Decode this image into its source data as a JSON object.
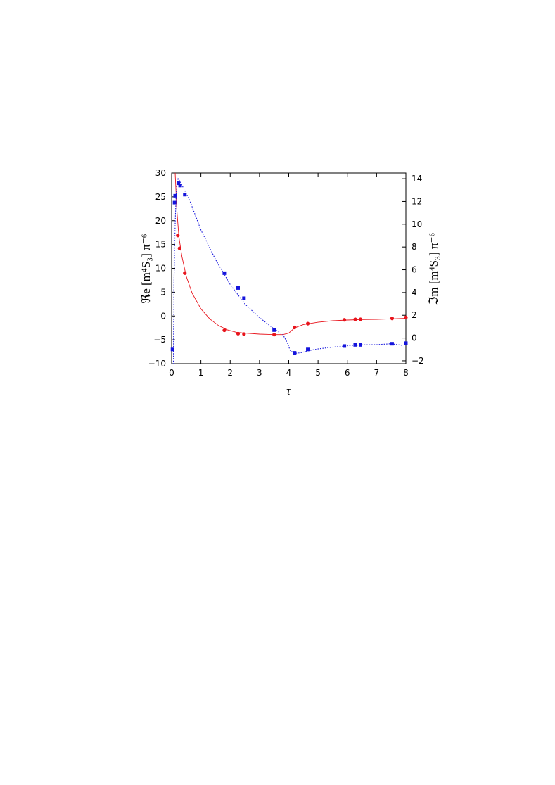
{
  "chart_data": {
    "type": "scatter",
    "xlabel": "τ",
    "ylabel_left": "ℜe [m⁴S₃] π⁻⁶",
    "ylabel_right": "ℑm [m⁴S₃] π⁻⁶",
    "xlim": [
      0,
      8
    ],
    "ylim_left": [
      -10,
      30
    ],
    "ylim_right": [
      -2.25,
      14.5
    ],
    "x_ticks": [
      "0",
      "1",
      "2",
      "3",
      "4",
      "5",
      "6",
      "7",
      "8"
    ],
    "y_left_ticks": [
      "30",
      "25",
      "20",
      "15",
      "10",
      "5",
      "0",
      "−5",
      "−10"
    ],
    "y_right_ticks": [
      "14",
      "12",
      "10",
      "8",
      "6",
      "4",
      "2",
      "0",
      "−2"
    ],
    "grid": false,
    "series": [
      {
        "axis": "left",
        "color": "#e8141c",
        "marker": "circle",
        "line_style": "solid",
        "points": [
          [
            0.21,
            16.9
          ],
          [
            0.27,
            14.2
          ],
          [
            0.45,
            9.0
          ],
          [
            1.8,
            -3.0
          ],
          [
            2.27,
            -3.7
          ],
          [
            2.47,
            -3.8
          ],
          [
            3.5,
            -3.9
          ],
          [
            4.2,
            -2.4
          ],
          [
            4.65,
            -1.6
          ],
          [
            5.9,
            -0.8
          ],
          [
            6.27,
            -0.7
          ],
          [
            6.45,
            -0.7
          ],
          [
            7.53,
            -0.5
          ],
          [
            8.0,
            -0.3
          ]
        ],
        "curve": [
          [
            0.12,
            30.0
          ],
          [
            0.18,
            22.0
          ],
          [
            0.25,
            16.5
          ],
          [
            0.35,
            12.5
          ],
          [
            0.5,
            8.3
          ],
          [
            0.7,
            4.8
          ],
          [
            1.0,
            1.5
          ],
          [
            1.3,
            -0.6
          ],
          [
            1.6,
            -2.0
          ],
          [
            1.9,
            -2.9
          ],
          [
            2.2,
            -3.4
          ],
          [
            2.5,
            -3.6
          ],
          [
            3.0,
            -3.8
          ],
          [
            3.5,
            -3.9
          ],
          [
            3.8,
            -3.9
          ],
          [
            4.0,
            -3.6
          ],
          [
            4.2,
            -2.5
          ],
          [
            4.5,
            -1.8
          ],
          [
            5.0,
            -1.3
          ],
          [
            5.5,
            -1.0
          ],
          [
            6.0,
            -0.85
          ],
          [
            6.5,
            -0.75
          ],
          [
            7.0,
            -0.7
          ],
          [
            7.5,
            -0.6
          ],
          [
            8.0,
            -0.5
          ]
        ]
      },
      {
        "axis": "right",
        "color": "#1414dc",
        "marker": "square",
        "line_style": "dotted",
        "points": [
          [
            0.03,
            -1.0
          ],
          [
            0.1,
            11.9
          ],
          [
            0.12,
            12.5
          ],
          [
            0.23,
            13.6
          ],
          [
            0.29,
            13.4
          ],
          [
            0.45,
            12.6
          ],
          [
            1.8,
            5.7
          ],
          [
            2.27,
            4.4
          ],
          [
            2.47,
            3.5
          ],
          [
            3.5,
            0.7
          ],
          [
            4.2,
            -1.3
          ],
          [
            4.65,
            -1.0
          ],
          [
            5.9,
            -0.7
          ],
          [
            6.27,
            -0.6
          ],
          [
            6.45,
            -0.6
          ],
          [
            7.53,
            -0.5
          ],
          [
            8.0,
            -0.45
          ]
        ],
        "curve": [
          [
            0.06,
            -2.3
          ],
          [
            0.08,
            5.0
          ],
          [
            0.12,
            10.0
          ],
          [
            0.16,
            13.2
          ],
          [
            0.22,
            14.0
          ],
          [
            0.3,
            13.7
          ],
          [
            0.4,
            13.2
          ],
          [
            0.6,
            12.2
          ],
          [
            1.0,
            9.5
          ],
          [
            1.5,
            6.9
          ],
          [
            2.0,
            4.7
          ],
          [
            2.5,
            3.0
          ],
          [
            3.0,
            1.8
          ],
          [
            3.5,
            0.8
          ],
          [
            3.8,
            0.3
          ],
          [
            3.95,
            -0.4
          ],
          [
            4.05,
            -1.1
          ],
          [
            4.2,
            -1.35
          ],
          [
            4.4,
            -1.3
          ],
          [
            4.7,
            -1.1
          ],
          [
            5.0,
            -0.95
          ],
          [
            5.5,
            -0.8
          ],
          [
            6.0,
            -0.68
          ],
          [
            6.5,
            -0.6
          ],
          [
            7.0,
            -0.58
          ],
          [
            7.5,
            -0.5
          ],
          [
            7.9,
            -0.65
          ]
        ]
      }
    ]
  }
}
